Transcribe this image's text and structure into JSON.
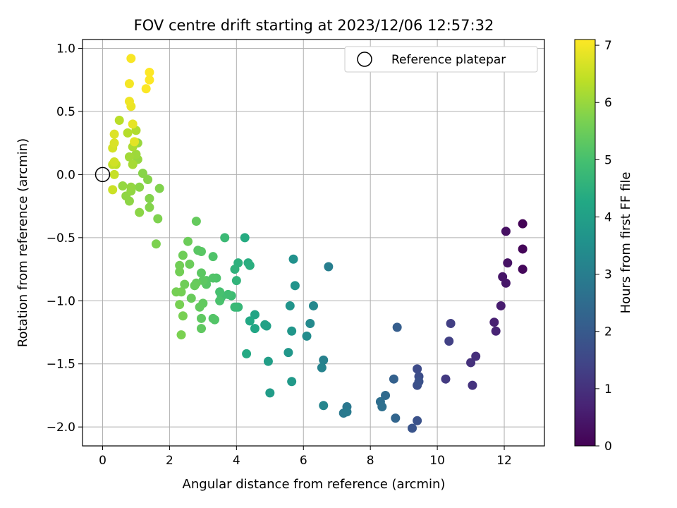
{
  "chart_data": {
    "type": "scatter",
    "title": "FOV centre drift starting at 2023/12/06 12:57:32",
    "xlabel": "Angular distance from reference (arcmin)",
    "ylabel": "Rotation from reference (arcmin)",
    "xlim": [
      -0.6,
      13.2
    ],
    "ylim": [
      -2.15,
      1.07
    ],
    "xticks": [
      0,
      2,
      4,
      6,
      8,
      10,
      12
    ],
    "yticks": [
      1.0,
      0.5,
      0.0,
      -0.5,
      -1.0,
      -1.5,
      -2.0
    ],
    "xtick_labels": [
      "0",
      "2",
      "4",
      "6",
      "8",
      "10",
      "12"
    ],
    "ytick_labels": [
      "1.0",
      "0.5",
      "0.0",
      "−0.5",
      "−1.0",
      "−1.5",
      "−2.0"
    ],
    "grid": true,
    "colormap": "viridis",
    "colorbar": {
      "label": "Hours from first FF file",
      "range": [
        0,
        7.1
      ],
      "ticks": [
        0,
        1,
        2,
        3,
        4,
        5,
        6,
        7
      ],
      "tick_labels": [
        "0",
        "1",
        "2",
        "3",
        "4",
        "5",
        "6",
        "7"
      ]
    },
    "legend": {
      "placement": "top-right",
      "entries": [
        {
          "label": "Reference platepar",
          "marker": "open-circle"
        }
      ]
    },
    "reference_point": {
      "x": 0,
      "y": 0
    },
    "points": [
      {
        "x": 12.55,
        "y": -0.39,
        "c": 0.05
      },
      {
        "x": 12.55,
        "y": -0.59,
        "c": 0.1
      },
      {
        "x": 12.55,
        "y": -0.75,
        "c": 0.15
      },
      {
        "x": 12.05,
        "y": -0.45,
        "c": 0.3
      },
      {
        "x": 12.1,
        "y": -0.7,
        "c": 0.35
      },
      {
        "x": 11.95,
        "y": -0.81,
        "c": 0.4
      },
      {
        "x": 12.05,
        "y": -0.86,
        "c": 0.45
      },
      {
        "x": 11.9,
        "y": -1.04,
        "c": 0.55
      },
      {
        "x": 11.7,
        "y": -1.17,
        "c": 0.65
      },
      {
        "x": 11.75,
        "y": -1.24,
        "c": 0.7
      },
      {
        "x": 11.15,
        "y": -1.44,
        "c": 0.95
      },
      {
        "x": 11.0,
        "y": -1.49,
        "c": 1.0
      },
      {
        "x": 11.05,
        "y": -1.67,
        "c": 1.05
      },
      {
        "x": 10.25,
        "y": -1.62,
        "c": 1.2
      },
      {
        "x": 10.4,
        "y": -1.18,
        "c": 1.3
      },
      {
        "x": 10.35,
        "y": -1.32,
        "c": 1.35
      },
      {
        "x": 9.4,
        "y": -1.54,
        "c": 1.6
      },
      {
        "x": 9.45,
        "y": -1.6,
        "c": 1.65
      },
      {
        "x": 9.4,
        "y": -1.67,
        "c": 1.7
      },
      {
        "x": 9.45,
        "y": -1.64,
        "c": 1.75
      },
      {
        "x": 9.4,
        "y": -1.95,
        "c": 1.8
      },
      {
        "x": 9.25,
        "y": -2.01,
        "c": 1.85
      },
      {
        "x": 8.8,
        "y": -1.21,
        "c": 2.1
      },
      {
        "x": 8.7,
        "y": -1.62,
        "c": 2.2
      },
      {
        "x": 8.75,
        "y": -1.93,
        "c": 2.3
      },
      {
        "x": 8.45,
        "y": -1.75,
        "c": 2.45
      },
      {
        "x": 8.3,
        "y": -1.8,
        "c": 2.55
      },
      {
        "x": 8.35,
        "y": -1.84,
        "c": 2.6
      },
      {
        "x": 7.3,
        "y": -1.84,
        "c": 2.8
      },
      {
        "x": 7.2,
        "y": -1.89,
        "c": 2.85
      },
      {
        "x": 7.3,
        "y": -1.88,
        "c": 2.9
      },
      {
        "x": 6.75,
        "y": -0.73,
        "c": 3.0
      },
      {
        "x": 6.6,
        "y": -1.47,
        "c": 3.1
      },
      {
        "x": 6.55,
        "y": -1.53,
        "c": 3.15
      },
      {
        "x": 6.6,
        "y": -1.83,
        "c": 3.2
      },
      {
        "x": 6.3,
        "y": -1.04,
        "c": 3.3
      },
      {
        "x": 6.2,
        "y": -1.18,
        "c": 3.35
      },
      {
        "x": 6.1,
        "y": -1.28,
        "c": 3.4
      },
      {
        "x": 5.7,
        "y": -0.67,
        "c": 3.55
      },
      {
        "x": 5.75,
        "y": -0.88,
        "c": 3.6
      },
      {
        "x": 5.6,
        "y": -1.04,
        "c": 3.65
      },
      {
        "x": 5.65,
        "y": -1.24,
        "c": 3.7
      },
      {
        "x": 5.55,
        "y": -1.41,
        "c": 3.75
      },
      {
        "x": 5.65,
        "y": -1.64,
        "c": 3.8
      },
      {
        "x": 5.0,
        "y": -1.73,
        "c": 3.9
      },
      {
        "x": 4.95,
        "y": -1.48,
        "c": 3.95
      },
      {
        "x": 4.9,
        "y": -1.2,
        "c": 4.0
      },
      {
        "x": 4.85,
        "y": -1.19,
        "c": 4.05
      },
      {
        "x": 4.55,
        "y": -1.11,
        "c": 4.15
      },
      {
        "x": 4.55,
        "y": -1.22,
        "c": 4.2
      },
      {
        "x": 4.4,
        "y": -1.16,
        "c": 4.25
      },
      {
        "x": 4.3,
        "y": -1.42,
        "c": 4.3
      },
      {
        "x": 4.25,
        "y": -0.5,
        "c": 4.35
      },
      {
        "x": 4.35,
        "y": -0.7,
        "c": 4.4
      },
      {
        "x": 4.4,
        "y": -0.72,
        "c": 4.45
      },
      {
        "x": 4.05,
        "y": -0.7,
        "c": 4.5
      },
      {
        "x": 3.95,
        "y": -0.75,
        "c": 4.55
      },
      {
        "x": 4.0,
        "y": -0.84,
        "c": 4.6
      },
      {
        "x": 4.0,
        "y": -1.05,
        "c": 4.65
      },
      {
        "x": 4.05,
        "y": -1.05,
        "c": 4.7
      },
      {
        "x": 3.95,
        "y": -1.05,
        "c": 4.75
      },
      {
        "x": 3.65,
        "y": -0.5,
        "c": 4.8
      },
      {
        "x": 3.85,
        "y": -0.96,
        "c": 4.85
      },
      {
        "x": 3.75,
        "y": -0.95,
        "c": 4.9
      },
      {
        "x": 3.55,
        "y": -0.97,
        "c": 4.95
      },
      {
        "x": 3.5,
        "y": -0.93,
        "c": 5.0
      },
      {
        "x": 3.5,
        "y": -1.0,
        "c": 5.05
      },
      {
        "x": 3.4,
        "y": -0.82,
        "c": 5.1
      },
      {
        "x": 3.3,
        "y": -0.65,
        "c": 5.12
      },
      {
        "x": 3.3,
        "y": -0.82,
        "c": 5.14
      },
      {
        "x": 3.35,
        "y": -1.15,
        "c": 5.16
      },
      {
        "x": 3.3,
        "y": -1.14,
        "c": 5.18
      },
      {
        "x": 3.1,
        "y": -0.84,
        "c": 5.2
      },
      {
        "x": 3.1,
        "y": -0.87,
        "c": 5.22
      },
      {
        "x": 2.95,
        "y": -0.61,
        "c": 5.24
      },
      {
        "x": 2.85,
        "y": -0.6,
        "c": 5.26
      },
      {
        "x": 2.95,
        "y": -0.78,
        "c": 5.28
      },
      {
        "x": 3.0,
        "y": -0.84,
        "c": 5.3
      },
      {
        "x": 2.95,
        "y": -1.14,
        "c": 5.32
      },
      {
        "x": 2.95,
        "y": -1.22,
        "c": 5.34
      },
      {
        "x": 3.0,
        "y": -1.02,
        "c": 5.36
      },
      {
        "x": 2.9,
        "y": -1.05,
        "c": 5.38
      },
      {
        "x": 2.8,
        "y": -0.37,
        "c": 5.4
      },
      {
        "x": 2.8,
        "y": -0.86,
        "c": 5.42
      },
      {
        "x": 2.75,
        "y": -0.88,
        "c": 5.44
      },
      {
        "x": 2.65,
        "y": -0.98,
        "c": 5.46
      },
      {
        "x": 2.6,
        "y": -0.71,
        "c": 5.48
      },
      {
        "x": 2.55,
        "y": -0.53,
        "c": 5.5
      },
      {
        "x": 2.4,
        "y": -0.64,
        "c": 5.52
      },
      {
        "x": 2.45,
        "y": -0.87,
        "c": 5.54
      },
      {
        "x": 2.3,
        "y": -0.72,
        "c": 5.56
      },
      {
        "x": 2.3,
        "y": -0.77,
        "c": 5.58
      },
      {
        "x": 2.35,
        "y": -0.93,
        "c": 5.6
      },
      {
        "x": 2.2,
        "y": -0.93,
        "c": 5.62
      },
      {
        "x": 2.3,
        "y": -1.03,
        "c": 5.64
      },
      {
        "x": 2.4,
        "y": -1.12,
        "c": 5.66
      },
      {
        "x": 2.35,
        "y": -1.27,
        "c": 5.68
      },
      {
        "x": 1.6,
        "y": -0.55,
        "c": 5.7
      },
      {
        "x": 1.65,
        "y": -0.35,
        "c": 5.72
      },
      {
        "x": 1.7,
        "y": -0.11,
        "c": 5.74
      },
      {
        "x": 1.4,
        "y": -0.19,
        "c": 5.76
      },
      {
        "x": 1.4,
        "y": -0.26,
        "c": 5.78
      },
      {
        "x": 1.35,
        "y": -0.04,
        "c": 5.8
      },
      {
        "x": 1.2,
        "y": 0.01,
        "c": 5.82
      },
      {
        "x": 1.1,
        "y": -0.1,
        "c": 5.84
      },
      {
        "x": 1.1,
        "y": -0.3,
        "c": 5.86
      },
      {
        "x": 0.8,
        "y": -0.21,
        "c": 5.88
      },
      {
        "x": 0.7,
        "y": -0.17,
        "c": 5.9
      },
      {
        "x": 0.85,
        "y": -0.13,
        "c": 5.92
      },
      {
        "x": 0.85,
        "y": -0.1,
        "c": 5.94
      },
      {
        "x": 0.6,
        "y": -0.09,
        "c": 5.96
      },
      {
        "x": 1.05,
        "y": 0.12,
        "c": 5.98
      },
      {
        "x": 1.05,
        "y": 0.25,
        "c": 6.0
      },
      {
        "x": 1.0,
        "y": 0.16,
        "c": 6.05
      },
      {
        "x": 0.8,
        "y": 0.14,
        "c": 6.1
      },
      {
        "x": 0.9,
        "y": 0.08,
        "c": 6.15
      },
      {
        "x": 0.9,
        "y": 0.22,
        "c": 6.2
      },
      {
        "x": 1.0,
        "y": 0.35,
        "c": 6.25
      },
      {
        "x": 0.75,
        "y": 0.33,
        "c": 6.3
      },
      {
        "x": 0.5,
        "y": 0.43,
        "c": 6.35
      },
      {
        "x": 0.4,
        "y": 0.08,
        "c": 6.4
      },
      {
        "x": 0.3,
        "y": 0.08,
        "c": 6.45
      },
      {
        "x": 0.35,
        "y": 0.0,
        "c": 6.5
      },
      {
        "x": 0.3,
        "y": -0.12,
        "c": 6.55
      },
      {
        "x": 0.35,
        "y": 0.1,
        "c": 6.6
      },
      {
        "x": 0.3,
        "y": 0.21,
        "c": 6.65
      },
      {
        "x": 0.35,
        "y": 0.25,
        "c": 6.7
      },
      {
        "x": 0.35,
        "y": 0.32,
        "c": 6.75
      },
      {
        "x": 0.95,
        "y": 0.26,
        "c": 6.8
      },
      {
        "x": 0.9,
        "y": 0.4,
        "c": 6.85
      },
      {
        "x": 0.85,
        "y": 0.54,
        "c": 6.9
      },
      {
        "x": 0.8,
        "y": 0.58,
        "c": 6.95
      },
      {
        "x": 0.8,
        "y": 0.72,
        "c": 7.0
      },
      {
        "x": 0.85,
        "y": 0.92,
        "c": 7.05
      },
      {
        "x": 1.3,
        "y": 0.68,
        "c": 7.08
      },
      {
        "x": 1.4,
        "y": 0.75,
        "c": 7.09
      },
      {
        "x": 1.4,
        "y": 0.81,
        "c": 7.1
      }
    ]
  }
}
